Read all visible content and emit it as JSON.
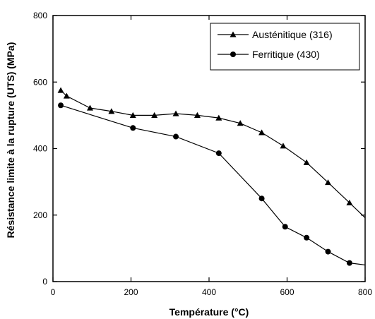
{
  "chart_data": {
    "type": "line",
    "title": "",
    "xlabel": "Température (°C)",
    "ylabel": "Résistance limite à la rupture (UTS) (MPa)",
    "xlim": [
      0,
      800
    ],
    "ylim": [
      0,
      800
    ],
    "xticks": [
      0,
      200,
      400,
      600,
      800
    ],
    "yticks": [
      0,
      200,
      400,
      600,
      800
    ],
    "grid": false,
    "legend_position": "top-right",
    "series": [
      {
        "name": "Austénitique (316)",
        "marker": "triangle",
        "color": "#000000",
        "x": [
          20,
          35,
          95,
          150,
          205,
          260,
          315,
          370,
          425,
          480,
          535,
          590,
          650,
          705,
          760,
          800
        ],
        "y": [
          575,
          558,
          522,
          512,
          500,
          500,
          505,
          500,
          492,
          476,
          448,
          408,
          358,
          298,
          237,
          192
        ]
      },
      {
        "name": "Ferritique (430)",
        "marker": "circle",
        "color": "#000000",
        "x": [
          20,
          205,
          315,
          425,
          535,
          595,
          650,
          705,
          760,
          800
        ],
        "y": [
          530,
          462,
          436,
          386,
          250,
          165,
          132,
          90,
          56,
          50
        ]
      }
    ]
  }
}
